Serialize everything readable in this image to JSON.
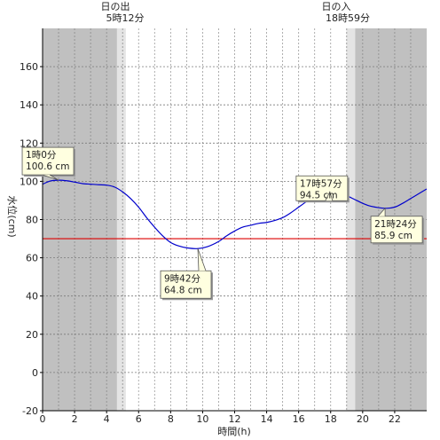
{
  "chart_data": {
    "type": "line",
    "xlabel": "時間(h)",
    "ylabel": "水位(cm)",
    "xlim": [
      0,
      24
    ],
    "ylim": [
      -20,
      180
    ],
    "x_ticks": [
      0,
      2,
      4,
      6,
      8,
      10,
      12,
      14,
      16,
      18,
      20,
      22
    ],
    "y_ticks": [
      -20,
      0,
      20,
      40,
      60,
      80,
      100,
      120,
      140,
      160
    ],
    "grid": true,
    "reference_line": {
      "y": 70,
      "color": "#dd0000"
    },
    "sunrise": {
      "title": "日の出",
      "time": "5時12分",
      "hour": 5.2
    },
    "sunset": {
      "title": "日の入",
      "time": "18時59分",
      "hour": 18.98
    },
    "night_color": "#c0c0c0",
    "twilight_color": "#e4e4e4",
    "series": [
      {
        "color": "#0000cc",
        "x": [
          0,
          0.5,
          1.0,
          1.5,
          2,
          2.5,
          3,
          3.5,
          4,
          4.5,
          5,
          5.5,
          6,
          6.5,
          7,
          7.5,
          8,
          8.5,
          9,
          9.7,
          10.3,
          11,
          11.5,
          12,
          12.5,
          13,
          13.5,
          14,
          14.5,
          15,
          15.5,
          16,
          16.5,
          17,
          17.5,
          17.95,
          18.5,
          19,
          19.5,
          20,
          20.5,
          21.4,
          22,
          22.5,
          23,
          23.5,
          24
        ],
        "y": [
          98.5,
          100.2,
          100.6,
          100.3,
          99.6,
          98.8,
          98.5,
          98.2,
          98.0,
          97.0,
          94.5,
          91.0,
          86.5,
          81.0,
          76.0,
          71.5,
          68.0,
          66.2,
          65.2,
          64.8,
          65.8,
          68.5,
          71.5,
          74.0,
          76.0,
          77.0,
          78.0,
          78.5,
          79.5,
          81.0,
          83.5,
          86.5,
          89.5,
          92.5,
          94.2,
          94.5,
          94.0,
          92.5,
          90.5,
          88.5,
          87.0,
          85.9,
          86.5,
          88.5,
          91.0,
          93.5,
          96.0
        ]
      }
    ],
    "annotations": [
      {
        "line1": "1時0分",
        "line2": "100.6 cm",
        "x": 1.0,
        "y": 100.6
      },
      {
        "line1": "9時42分",
        "line2": "64.8 cm",
        "x": 9.7,
        "y": 64.8
      },
      {
        "line1": "17時57分",
        "line2": "94.5 cm",
        "x": 17.95,
        "y": 94.5
      },
      {
        "line1": "21時24分",
        "line2": "85.9 cm",
        "x": 21.4,
        "y": 85.9
      }
    ]
  }
}
